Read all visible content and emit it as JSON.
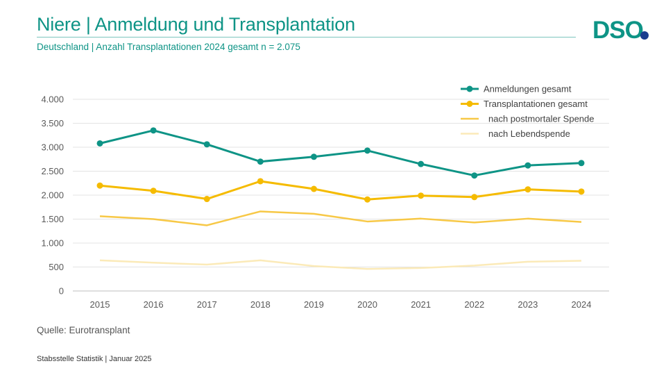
{
  "header": {
    "title": "Niere | Anmeldung und Transplantation",
    "subtitle": "Deutschland | Anzahl Transplantationen 2024 gesamt n = 2.075",
    "logo_text": "DSO"
  },
  "footer": {
    "source": "Quelle: Eurotransplant",
    "credit": "Stabsstelle Statistik | Januar 2025"
  },
  "chart_data": {
    "type": "line",
    "title": "",
    "xlabel": "",
    "ylabel": "",
    "x": [
      "2015",
      "2016",
      "2017",
      "2018",
      "2019",
      "2020",
      "2021",
      "2022",
      "2023",
      "2024"
    ],
    "ylim": [
      0,
      4000
    ],
    "yticks": [
      0,
      500,
      1000,
      1500,
      2000,
      2500,
      3000,
      3500,
      4000
    ],
    "ytick_labels": [
      "0",
      "500",
      "1.000",
      "1.500",
      "2.000",
      "2.500",
      "3.000",
      "3.500",
      "4.000"
    ],
    "grid": true,
    "legend_position": "top-right",
    "series": [
      {
        "name": "Anmeldungen gesamt",
        "color": "#0e9486",
        "markers": true,
        "values": [
          3080,
          3350,
          3060,
          2700,
          2800,
          2930,
          2650,
          2410,
          2620,
          2670
        ]
      },
      {
        "name": "Transplantationen gesamt",
        "color": "#f5bb00",
        "markers": true,
        "values": [
          2200,
          2090,
          1920,
          2290,
          2130,
          1910,
          1990,
          1960,
          2120,
          2075
        ]
      },
      {
        "name": "nach postmortaler Spende",
        "color": "#f7c846",
        "markers": false,
        "values": [
          1560,
          1500,
          1370,
          1660,
          1610,
          1450,
          1510,
          1430,
          1510,
          1440
        ]
      },
      {
        "name": "nach Lebendspende",
        "color": "#fbeab8",
        "markers": false,
        "values": [
          640,
          590,
          550,
          640,
          520,
          460,
          480,
          530,
          610,
          630
        ]
      }
    ]
  }
}
